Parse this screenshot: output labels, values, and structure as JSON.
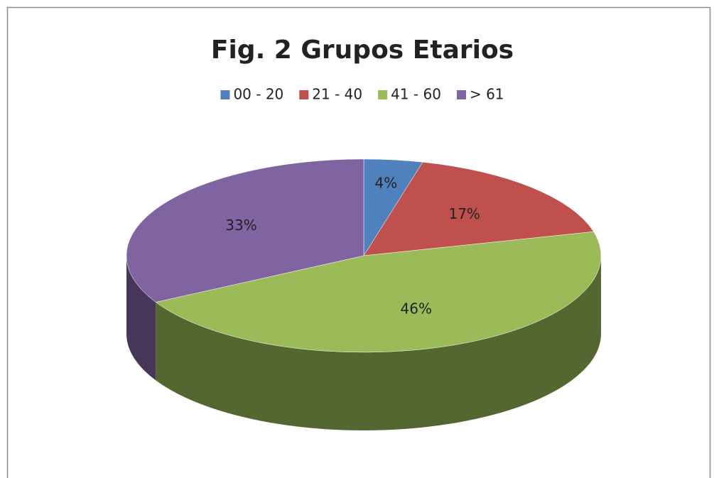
{
  "chart_data": {
    "type": "pie",
    "title": "Fig. 2 Grupos Etarios",
    "categories": [
      "00 - 20",
      "21 - 40",
      "41 - 60",
      "> 61"
    ],
    "values": [
      4,
      17,
      46,
      33
    ],
    "value_labels": [
      "4%",
      "17%",
      "46%",
      "33%"
    ],
    "colors": [
      "#4f81bd",
      "#c0504d",
      "#9bbb59",
      "#8064a2"
    ],
    "legend": "top"
  }
}
